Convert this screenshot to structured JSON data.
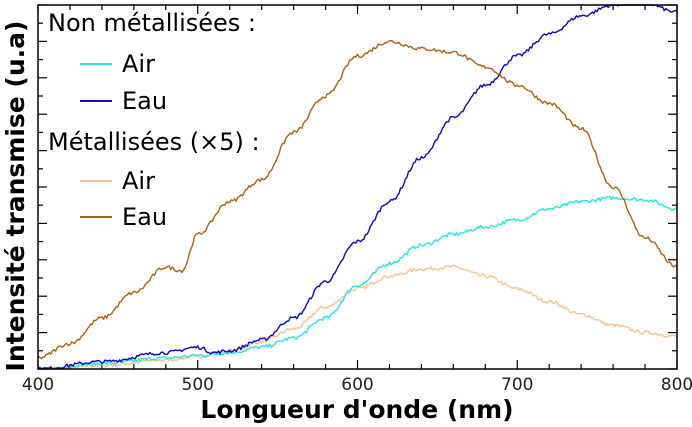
{
  "chart_data": {
    "type": "line",
    "title": "",
    "xlabel": "Longueur d'onde (nm)",
    "ylabel": "Intensité transmise (u.a)",
    "xlim": [
      400,
      800
    ],
    "ylim": [
      0,
      1
    ],
    "x_ticks": [
      400,
      500,
      600,
      700,
      800
    ],
    "y_tick_labels_shown": false,
    "grid": false,
    "legend_position": "top-left",
    "legend_groups": [
      {
        "title": "Non métallisées :",
        "series_indices": [
          0,
          1
        ]
      },
      {
        "title": "Métallisées (×5) :",
        "series_indices": [
          2,
          3
        ]
      }
    ],
    "series": [
      {
        "name": "Air",
        "color": "#22e6e6",
        "x": [
          400,
          440,
          480,
          500,
          520,
          540,
          560,
          580,
          600,
          620,
          640,
          660,
          680,
          700,
          720,
          740,
          760,
          780,
          800
        ],
        "values": [
          0.0,
          0.015,
          0.03,
          0.037,
          0.045,
          0.06,
          0.085,
          0.14,
          0.23,
          0.29,
          0.34,
          0.37,
          0.39,
          0.41,
          0.44,
          0.46,
          0.47,
          0.465,
          0.44
        ]
      },
      {
        "name": "Eau",
        "color": "#0a0ac8",
        "x": [
          400,
          440,
          480,
          500,
          510,
          520,
          540,
          560,
          580,
          600,
          620,
          640,
          660,
          680,
          700,
          720,
          740,
          760,
          770,
          780,
          800
        ],
        "values": [
          0.0,
          0.02,
          0.045,
          0.06,
          0.045,
          0.05,
          0.08,
          0.14,
          0.24,
          0.35,
          0.46,
          0.58,
          0.69,
          0.78,
          0.86,
          0.92,
          0.97,
          1.0,
          1.01,
          1.005,
          0.98
        ]
      },
      {
        "name": "Air",
        "color": "#f5c490",
        "x": [
          400,
          440,
          480,
          500,
          520,
          540,
          560,
          580,
          600,
          620,
          640,
          660,
          680,
          700,
          720,
          740,
          760,
          780,
          800
        ],
        "values": [
          0.0,
          0.01,
          0.025,
          0.035,
          0.05,
          0.075,
          0.11,
          0.17,
          0.22,
          0.255,
          0.275,
          0.28,
          0.255,
          0.22,
          0.185,
          0.15,
          0.12,
          0.1,
          0.09
        ]
      },
      {
        "name": "Eau",
        "color": "#b06010",
        "x": [
          400,
          420,
          440,
          460,
          480,
          490,
          500,
          520,
          540,
          560,
          580,
          600,
          620,
          640,
          660,
          680,
          700,
          720,
          740,
          760,
          780,
          800
        ],
        "values": [
          0.03,
          0.07,
          0.14,
          0.21,
          0.28,
          0.27,
          0.37,
          0.46,
          0.52,
          0.65,
          0.75,
          0.86,
          0.9,
          0.88,
          0.87,
          0.83,
          0.78,
          0.73,
          0.66,
          0.5,
          0.36,
          0.28
        ]
      }
    ]
  }
}
